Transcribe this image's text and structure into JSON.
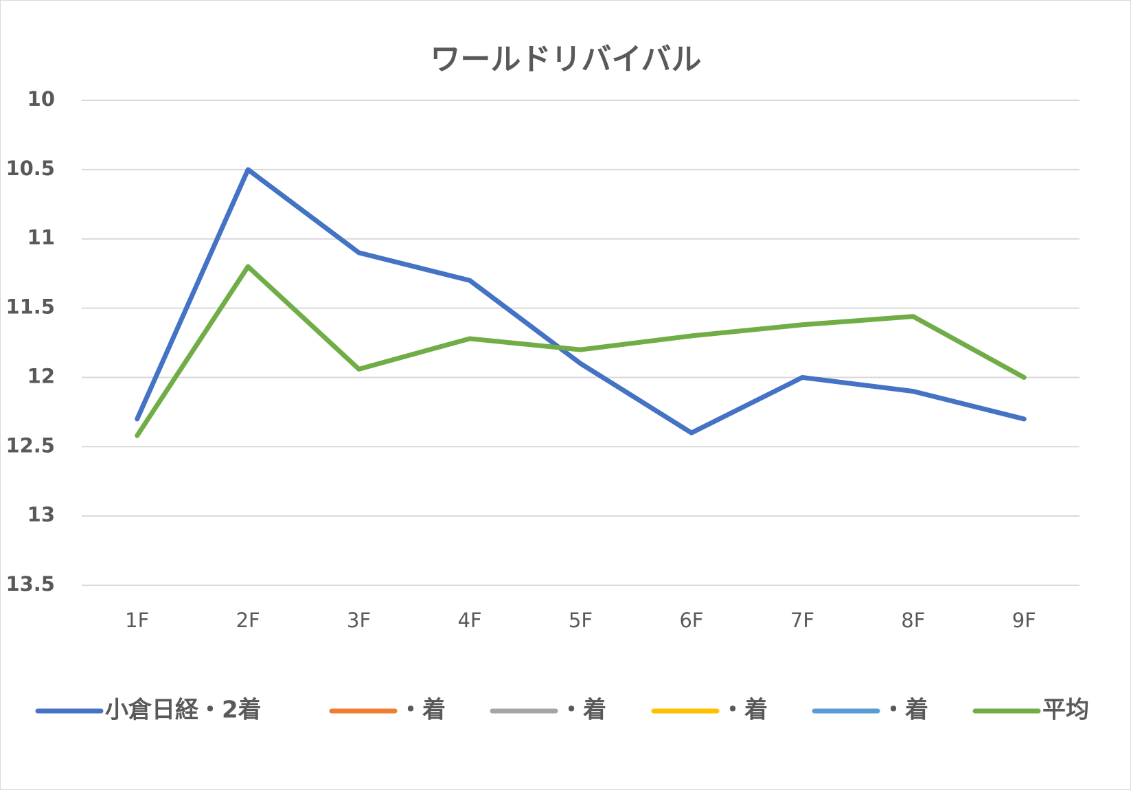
{
  "chart_data": {
    "type": "line",
    "title": "ワールドリバイバル",
    "categories": [
      "1F",
      "2F",
      "3F",
      "4F",
      "5F",
      "6F",
      "7F",
      "8F",
      "9F"
    ],
    "series": [
      {
        "name": "小倉日経・2着",
        "color": "#4472c4",
        "values": [
          12.3,
          10.5,
          11.1,
          11.3,
          11.9,
          12.4,
          12.0,
          12.1,
          12.3
        ]
      },
      {
        "name": "・着",
        "color": "#ed7d31",
        "values": [
          null,
          null,
          null,
          null,
          null,
          null,
          null,
          null,
          null
        ]
      },
      {
        "name": "・着",
        "color": "#a5a5a5",
        "values": [
          null,
          null,
          null,
          null,
          null,
          null,
          null,
          null,
          null
        ]
      },
      {
        "name": "・着",
        "color": "#ffc000",
        "values": [
          null,
          null,
          null,
          null,
          null,
          null,
          null,
          null,
          null
        ]
      },
      {
        "name": "・着",
        "color": "#5b9bd5",
        "values": [
          null,
          null,
          null,
          null,
          null,
          null,
          null,
          null,
          null
        ]
      },
      {
        "name": "平均",
        "color": "#70ad47",
        "values": [
          12.42,
          11.2,
          11.94,
          11.72,
          11.8,
          11.7,
          11.62,
          11.56,
          12.0
        ]
      }
    ],
    "ylim": [
      10,
      13.5
    ],
    "yticks": [
      10,
      10.5,
      11,
      11.5,
      12,
      12.5,
      13,
      13.5
    ],
    "y_inverted": true,
    "grid": true,
    "legend": "bottom"
  }
}
